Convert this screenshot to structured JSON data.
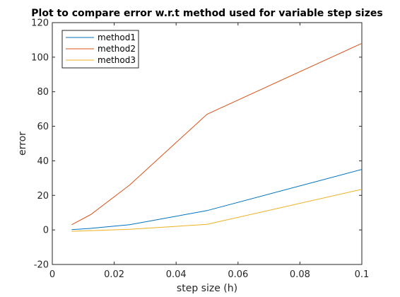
{
  "chart_data": {
    "type": "line",
    "title": "Plot to compare error w.r.t method used for variable step sizes",
    "xlabel": "step size (h)",
    "ylabel": "error",
    "xlim": [
      0,
      0.1
    ],
    "ylim": [
      -20,
      120
    ],
    "xticks": [
      0,
      0.02,
      0.04,
      0.06,
      0.08,
      0.1
    ],
    "xtick_labels": [
      "0",
      "0.02",
      "0.04",
      "0.06",
      "0.08",
      "0.1"
    ],
    "yticks": [
      -20,
      0,
      20,
      40,
      60,
      80,
      100,
      120
    ],
    "ytick_labels": [
      "-20",
      "0",
      "20",
      "40",
      "60",
      "80",
      "100",
      "120"
    ],
    "grid": false,
    "legend_position": "top-left",
    "x": [
      0.00625,
      0.0125,
      0.025,
      0.05,
      0.1
    ],
    "series": [
      {
        "name": "method1",
        "color": "#0072BD",
        "values": [
          0.2,
          0.9,
          3.0,
          11.2,
          35.0
        ]
      },
      {
        "name": "method2",
        "color": "#D95319",
        "values": [
          3.0,
          9.0,
          26.0,
          67.0,
          108.0
        ]
      },
      {
        "name": "method3",
        "color": "#EDB120",
        "values": [
          -0.8,
          -0.4,
          0.4,
          3.2,
          23.5
        ]
      }
    ]
  }
}
